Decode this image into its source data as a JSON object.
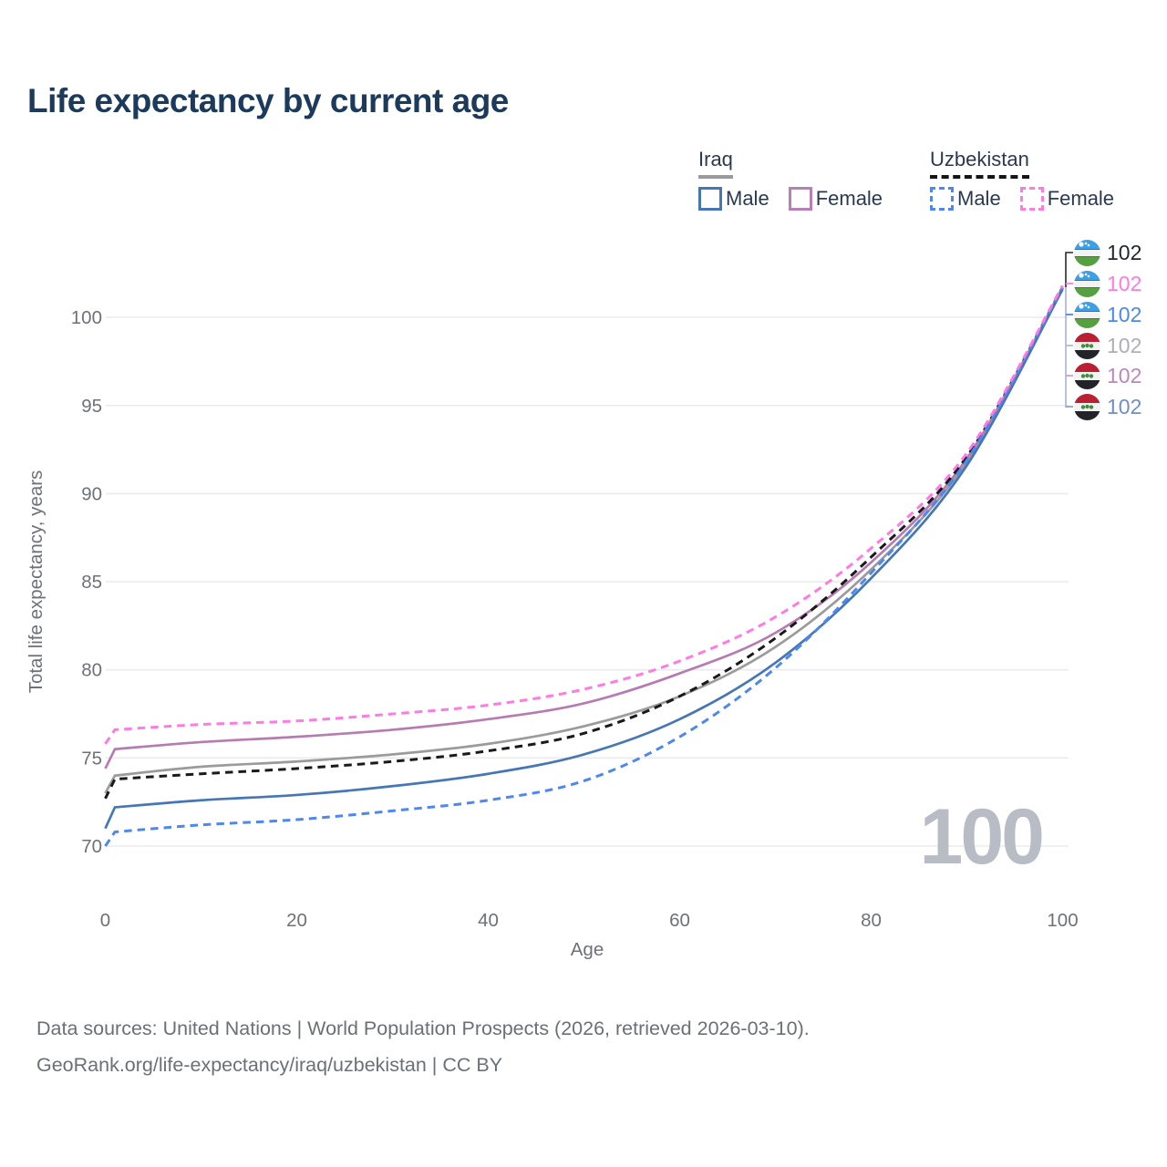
{
  "title": "Life expectancy by current age",
  "legend": {
    "groups": [
      {
        "id": "iraq",
        "label": "Iraq",
        "line_style": "solid",
        "underline_color": "#9a9a9a",
        "items": [
          {
            "label": "Male",
            "color": "#4576b5"
          },
          {
            "label": "Female",
            "color": "#b97db8"
          }
        ]
      },
      {
        "id": "uzbekistan",
        "label": "Uzbekistan",
        "line_style": "dashed",
        "underline_color": "#151515",
        "items": [
          {
            "label": "Male",
            "color": "#4d87f0"
          },
          {
            "label": "Female",
            "color": "#ff7ae2"
          }
        ]
      }
    ]
  },
  "chart_data": {
    "type": "line",
    "title": "Life expectancy by current age",
    "xlabel": "Age",
    "ylabel": "Total life expectancy, years",
    "xlim": [
      0,
      100
    ],
    "ylim": [
      68.5,
      103
    ],
    "x_ticks": [
      0,
      20,
      40,
      60,
      80,
      100
    ],
    "y_ticks": [
      70,
      75,
      80,
      85,
      90,
      95,
      100
    ],
    "grid": "horizontal",
    "legend_position": "top-right",
    "x": [
      0,
      1,
      10,
      20,
      30,
      40,
      50,
      60,
      70,
      80,
      90,
      100
    ],
    "series": [
      {
        "name": "Iraq Male",
        "country": "Iraq",
        "sex": "Male",
        "style": "solid",
        "color": "#4576b5",
        "values": [
          71.0,
          72.2,
          72.6,
          72.9,
          73.4,
          74.1,
          75.2,
          77.2,
          80.4,
          85.2,
          91.6,
          101.6
        ]
      },
      {
        "name": "Iraq Female",
        "country": "Iraq",
        "sex": "Female",
        "style": "solid",
        "color": "#b67cb1",
        "values": [
          74.4,
          75.5,
          75.9,
          76.2,
          76.6,
          77.2,
          78.1,
          79.8,
          82.1,
          86.1,
          92.0,
          101.7
        ]
      },
      {
        "name": "Iraq All",
        "country": "Iraq",
        "sex": "All",
        "style": "solid",
        "color": "#9b9b9e",
        "values": [
          73.0,
          74.0,
          74.5,
          74.8,
          75.2,
          75.8,
          76.8,
          78.5,
          81.3,
          85.7,
          91.8,
          101.6
        ]
      },
      {
        "name": "Uzbekistan Male",
        "country": "Uzbekistan",
        "sex": "Male",
        "style": "dashed",
        "color": "#4d87f0",
        "values": [
          70.0,
          70.8,
          71.2,
          71.5,
          72.0,
          72.6,
          73.7,
          76.2,
          80.1,
          85.5,
          91.9,
          101.7
        ]
      },
      {
        "name": "Uzbekistan Female",
        "country": "Uzbekistan",
        "sex": "Female",
        "style": "dashed",
        "color": "#ff7ae2",
        "values": [
          75.8,
          76.6,
          76.9,
          77.1,
          77.5,
          78.0,
          78.9,
          80.5,
          83.0,
          86.9,
          92.3,
          101.8
        ]
      },
      {
        "name": "Uzbekistan All",
        "country": "Uzbekistan",
        "sex": "All",
        "style": "dashed",
        "color": "#1a1a1a",
        "values": [
          72.7,
          73.8,
          74.1,
          74.4,
          74.8,
          75.4,
          76.4,
          78.5,
          81.8,
          86.4,
          92.1,
          101.7
        ]
      }
    ],
    "end_labels": [
      {
        "country": "Uzbekistan",
        "sex": "All",
        "value": "102",
        "color": "#22262e"
      },
      {
        "country": "Uzbekistan",
        "sex": "Female",
        "value": "102",
        "color": "#ff7ae2"
      },
      {
        "country": "Uzbekistan",
        "sex": "Male",
        "value": "102",
        "color": "#4d87f0"
      },
      {
        "country": "Iraq",
        "sex": "All",
        "value": "102",
        "color": "#adafb4"
      },
      {
        "country": "Iraq",
        "sex": "Female",
        "value": "102",
        "color": "#bd87ba"
      },
      {
        "country": "Iraq",
        "sex": "Male",
        "value": "102",
        "color": "#6e8ec8"
      }
    ],
    "watermark": "100"
  },
  "footer": {
    "line1": "Data sources: United Nations | World Population Prospects (2026, retrieved 2026-03-10).",
    "line2": "GeoRank.org/life-expectancy/iraq/uzbekistan | CC BY"
  }
}
